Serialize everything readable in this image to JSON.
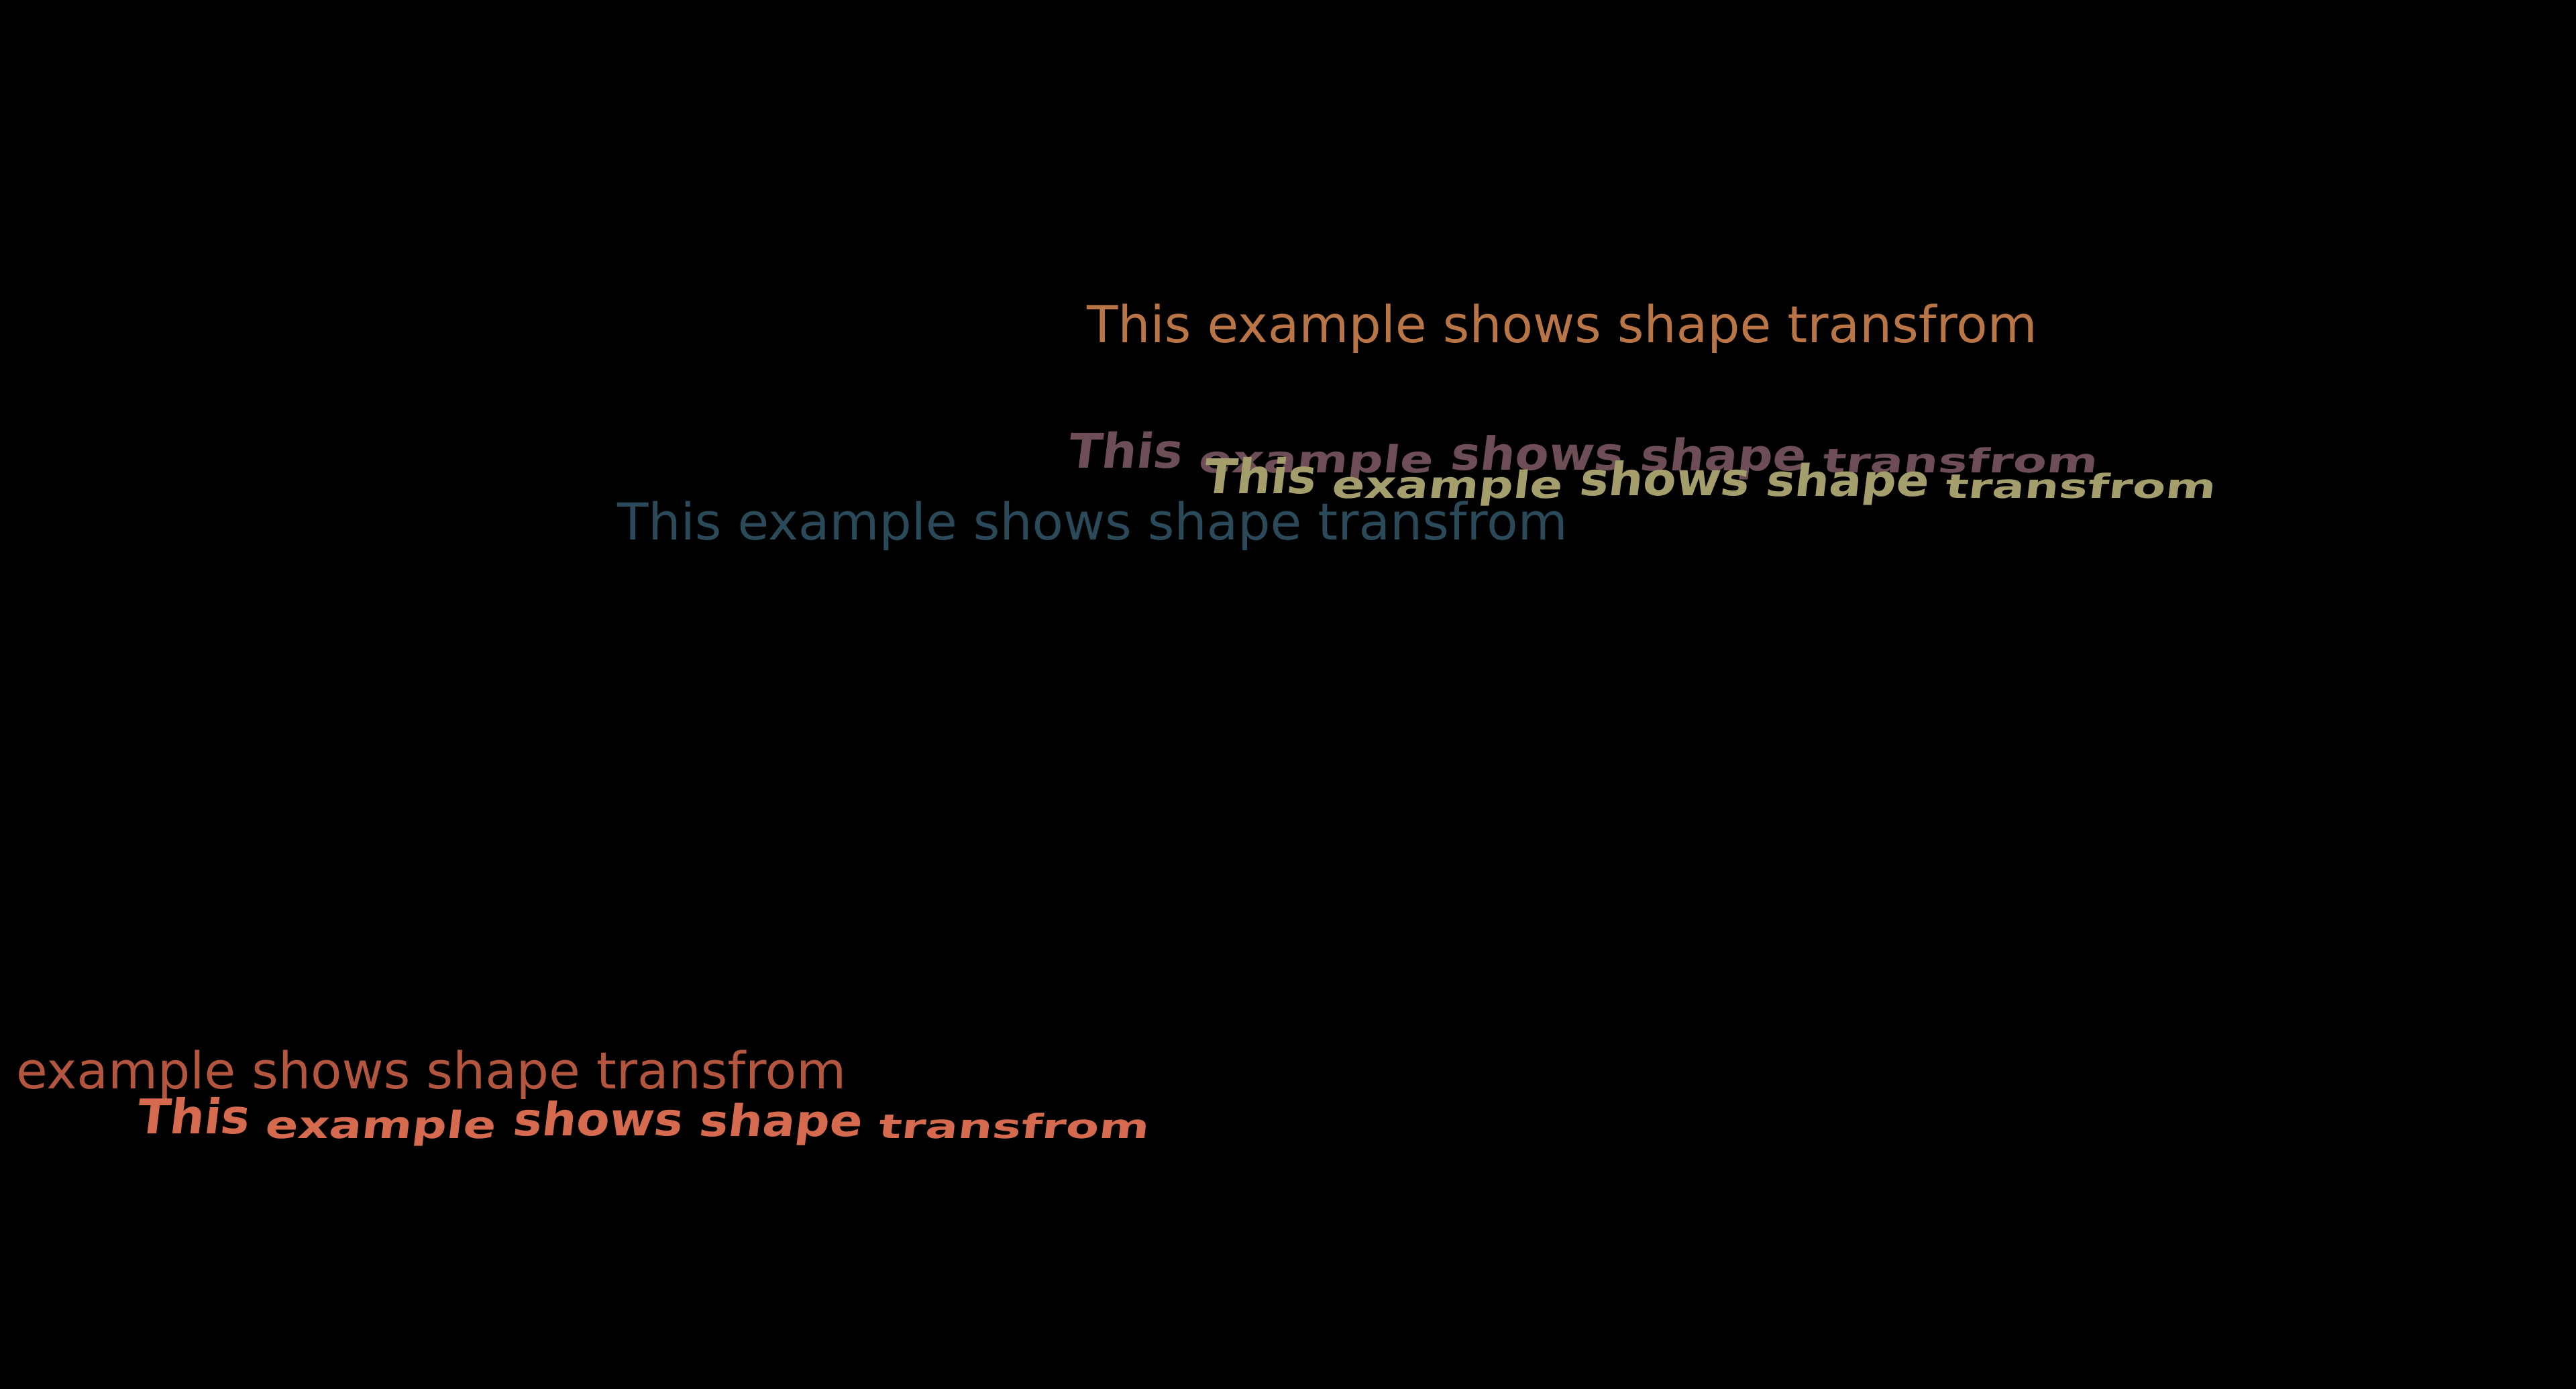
{
  "colors": {
    "background": "#000000",
    "caption_orange": "#b97545",
    "caption_teal": "#2a4a59",
    "caption_coral": "#b4563f",
    "morph_mauve": "#6e4e56",
    "morph_khaki": "#a49d6c",
    "morph_coral": "#d56a4f"
  },
  "captions": [
    {
      "text": "This example shows shape transfrom",
      "color": "#b97545"
    },
    {
      "text": "This example shows shape transfrom",
      "color": "#2a4a59"
    },
    {
      "text": "example shows shape transfrom",
      "color": "#b4563f"
    }
  ],
  "morphs": [
    {
      "words": [
        "This",
        "example",
        "shows",
        "shape",
        "transfrom"
      ],
      "color": "#6e4e56"
    },
    {
      "words": [
        "This",
        "example",
        "shows",
        "shape",
        "transfrom"
      ],
      "color": "#a49d6c"
    },
    {
      "words": [
        "This",
        "example",
        "shows",
        "shape",
        "transfrom"
      ],
      "color": "#d56a4f"
    }
  ]
}
